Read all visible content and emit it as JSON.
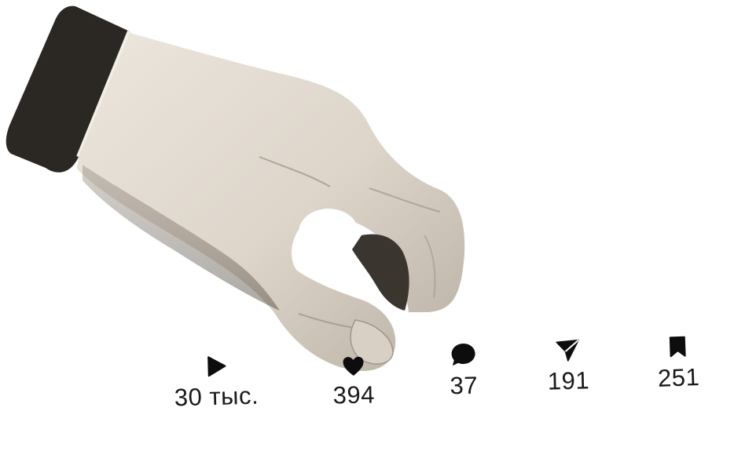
{
  "stats": {
    "views": {
      "icon": "play-icon",
      "count": "30 тыс."
    },
    "likes": {
      "icon": "heart-icon",
      "count": "394"
    },
    "comments": {
      "icon": "comment-icon",
      "count": "37"
    },
    "shares": {
      "icon": "send-icon",
      "count": "191"
    },
    "saves": {
      "icon": "bookmark-icon",
      "count": "251"
    }
  },
  "colors": {
    "icon": "#0d0d0d",
    "text": "#1a1a1a",
    "skin": "#e4ddd3",
    "cuff": "#2a2622"
  }
}
